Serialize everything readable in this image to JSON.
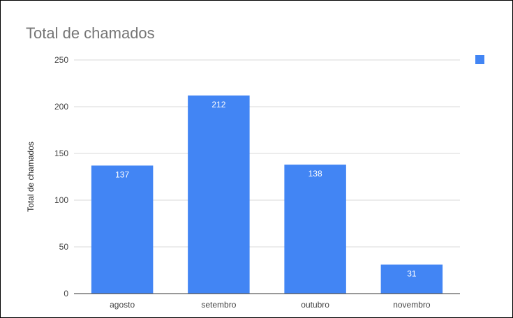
{
  "chart_data": {
    "type": "bar",
    "title": "Total de chamados",
    "ylabel": "Total de chamados",
    "xlabel": "",
    "categories": [
      "agosto",
      "setembro",
      "outubro",
      "novembro"
    ],
    "series": [
      {
        "values": [
          137,
          212,
          138,
          31
        ],
        "color": "#4285f4"
      }
    ],
    "ylim": [
      0,
      250
    ],
    "yticks": [
      "0",
      "50",
      "100",
      "150",
      "200",
      "250"
    ],
    "data_labels": [
      "137",
      "212",
      "138",
      "31"
    ],
    "grid": true,
    "legend": "top-right"
  }
}
